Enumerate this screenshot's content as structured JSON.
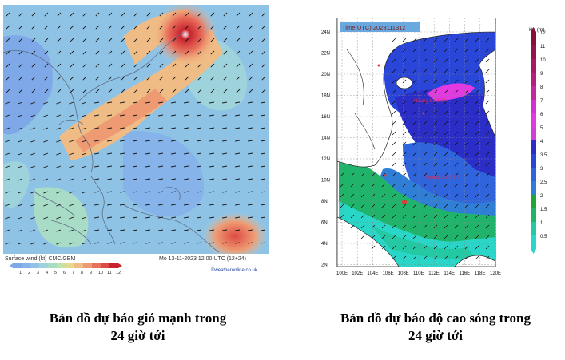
{
  "wind_map": {
    "footer_left": "Surface wind (kt)  CMC/GEM",
    "footer_right": "Mo 13-11-2023 12:00 UTC (12+24)",
    "credit": "©weatheronline.co.uk",
    "scale_labels": [
      "1",
      "2",
      "3",
      "4",
      "5",
      "6",
      "7",
      "8",
      "9",
      "10",
      "11",
      "12"
    ],
    "scale_colors": [
      "#7fa8e8",
      "#86b3ea",
      "#8fc3e6",
      "#9fd3dc",
      "#a9dcc6",
      "#c3e2a8",
      "#e6d98f",
      "#f0bc85",
      "#ee9a72",
      "#e9705c",
      "#de4a44",
      "#c8232d"
    ]
  },
  "wave_map": {
    "time_label": "Time(UTC):2023111312",
    "legend_title": "Hs (m)",
    "legend_labels": [
      "0.5",
      "1",
      "1.5",
      "2",
      "2.5",
      "3",
      "3.5",
      "4",
      "5",
      "6",
      "7",
      "8",
      "9",
      "10",
      "11",
      "12"
    ],
    "legend_colors": [
      "#2ad6c8",
      "#24c9a4",
      "#20b46a",
      "#22a43a",
      "#2f7fd6",
      "#2f64dc",
      "#2a46d8",
      "#2a2ec6",
      "#d040d6",
      "#e23ae0",
      "#d42fcf",
      "#c4289e",
      "#b41f7c",
      "#a61a64",
      "#96144c",
      "#861038"
    ],
    "lat_labels": [
      "24N",
      "22N",
      "20N",
      "18N",
      "16N",
      "14N",
      "12N",
      "10N",
      "8N",
      "6N",
      "4N",
      "2N"
    ],
    "lon_labels": [
      "100E",
      "102E",
      "104E",
      "106E",
      "108E",
      "110E",
      "112E",
      "114E",
      "116E",
      "118E",
      "120E"
    ],
    "annotation_1": "Hoang Sa 3.5m",
    "annotation_2": "Truong Sa 2.5m"
  },
  "captions": {
    "left_line1": "Bản đồ dự báo gió mạnh trong",
    "left_line2": "24 giờ tới",
    "right_line1": "Bản đồ dự báo độ cao sóng trong",
    "right_line2": "24 giờ tới"
  }
}
